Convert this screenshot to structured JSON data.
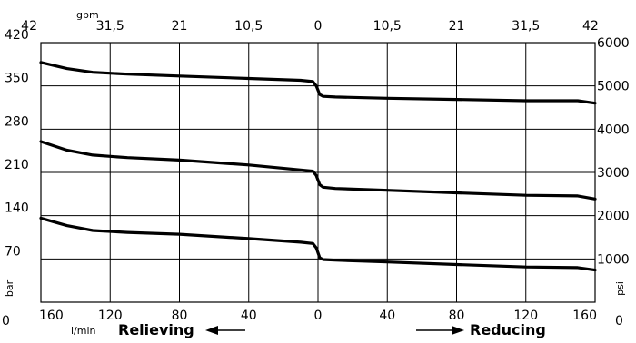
{
  "chart_data": {
    "type": "line",
    "title": "",
    "x_top_label": "gpm",
    "x_bottom_label": "l/min",
    "y_left_label": "bar",
    "y_right_label": "psi",
    "relieving_label": "Relieving",
    "reducing_label": "Reducing",
    "x_bottom_ticks": [
      "160",
      "120",
      "80",
      "40",
      "0",
      "40",
      "80",
      "120",
      "160"
    ],
    "x_top_ticks": [
      "42",
      "31,5",
      "21",
      "10,5",
      "0",
      "10,5",
      "21",
      "31,5",
      "42"
    ],
    "y_left_ticks": [
      "0",
      "70",
      "140",
      "210",
      "280",
      "350",
      "420"
    ],
    "y_right_ticks": [
      "0",
      "1000",
      "2000",
      "3000",
      "4000",
      "5000",
      "6000"
    ],
    "x_range": [
      -160,
      160
    ],
    "y_range": [
      0,
      420
    ],
    "grid": true,
    "series": [
      {
        "points": [
          [
            -160,
            388
          ],
          [
            -145,
            378
          ],
          [
            -130,
            372
          ],
          [
            -110,
            369
          ],
          [
            -80,
            366
          ],
          [
            -40,
            362
          ],
          [
            -10,
            359
          ],
          [
            -3,
            357
          ],
          [
            -1,
            350
          ],
          [
            1,
            336
          ],
          [
            3,
            333
          ],
          [
            10,
            332
          ],
          [
            40,
            330
          ],
          [
            80,
            328
          ],
          [
            120,
            326
          ],
          [
            150,
            326
          ],
          [
            160,
            322
          ]
        ]
      },
      {
        "points": [
          [
            -160,
            260
          ],
          [
            -145,
            246
          ],
          [
            -130,
            238
          ],
          [
            -110,
            234
          ],
          [
            -80,
            230
          ],
          [
            -40,
            222
          ],
          [
            -10,
            214
          ],
          [
            -3,
            212
          ],
          [
            -1,
            205
          ],
          [
            1,
            190
          ],
          [
            3,
            186
          ],
          [
            10,
            184
          ],
          [
            40,
            181
          ],
          [
            80,
            177
          ],
          [
            120,
            173
          ],
          [
            150,
            172
          ],
          [
            160,
            167
          ]
        ]
      },
      {
        "points": [
          [
            -160,
            136
          ],
          [
            -145,
            124
          ],
          [
            -130,
            116
          ],
          [
            -110,
            113
          ],
          [
            -80,
            110
          ],
          [
            -40,
            103
          ],
          [
            -10,
            97
          ],
          [
            -3,
            95
          ],
          [
            -1,
            88
          ],
          [
            1,
            72
          ],
          [
            3,
            69
          ],
          [
            10,
            68
          ],
          [
            40,
            65
          ],
          [
            80,
            61
          ],
          [
            120,
            57
          ],
          [
            150,
            56
          ],
          [
            160,
            52
          ]
        ]
      }
    ]
  }
}
